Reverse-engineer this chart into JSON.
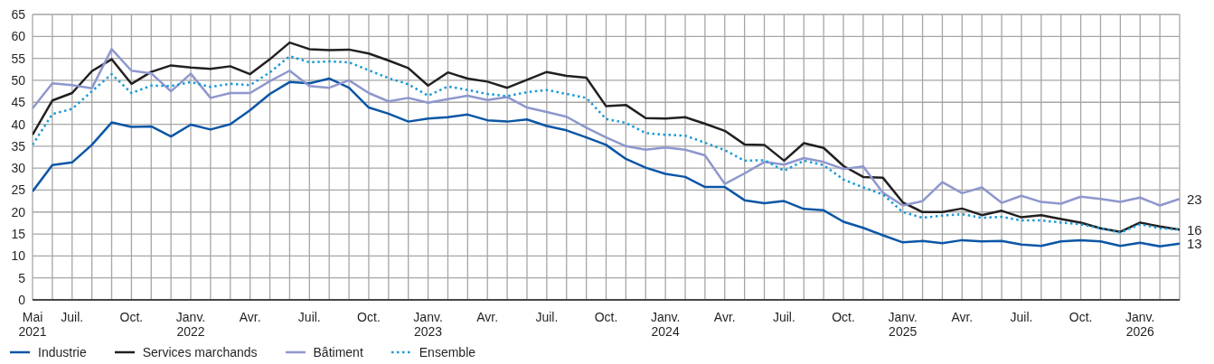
{
  "chart_data": {
    "type": "line",
    "x": [
      "2021-05",
      "2021-06",
      "2021-07",
      "2021-08",
      "2021-09",
      "2021-10",
      "2021-11",
      "2021-12",
      "2022-01",
      "2022-02",
      "2022-03",
      "2022-04",
      "2022-05",
      "2022-06",
      "2022-07",
      "2022-08",
      "2022-09",
      "2022-10",
      "2022-11",
      "2022-12",
      "2023-01",
      "2023-02",
      "2023-03",
      "2023-04",
      "2023-05",
      "2023-06",
      "2023-07",
      "2023-08",
      "2023-09",
      "2023-10",
      "2023-11",
      "2023-12",
      "2024-01",
      "2024-02",
      "2024-03",
      "2024-04",
      "2024-05",
      "2024-06",
      "2024-07",
      "2024-08",
      "2024-09",
      "2024-10",
      "2024-11",
      "2024-12",
      "2025-01",
      "2025-02",
      "2025-03",
      "2025-04",
      "2025-05",
      "2025-06",
      "2025-07",
      "2025-08",
      "2025-09",
      "2025-10",
      "2025-11",
      "2025-12",
      "2026-01",
      "2026-02",
      "2026-03"
    ],
    "series": [
      {
        "name": "Industrie",
        "color": "#0b56a6",
        "line_style": "solid",
        "values": [
          24.7,
          30.7,
          31.3,
          35.3,
          40.4,
          39.4,
          39.5,
          37.2,
          39.9,
          38.8,
          40.0,
          43.2,
          46.9,
          49.6,
          49.3,
          50.4,
          48.3,
          43.8,
          42.4,
          40.6,
          41.3,
          41.6,
          42.2,
          40.9,
          40.6,
          41.1,
          39.6,
          38.6,
          37.0,
          35.3,
          32.1,
          30.1,
          28.7,
          28.0,
          25.7,
          25.7,
          22.7,
          22.0,
          22.5,
          20.7,
          20.4,
          17.8,
          16.4,
          14.7,
          13.1,
          13.4,
          12.9,
          13.6,
          13.3,
          13.4,
          12.6,
          12.3,
          13.3,
          13.6,
          13.3,
          12.3,
          13.0,
          12.2,
          12.8
        ]
      },
      {
        "name": "Services marchands",
        "color": "#231f20",
        "line_style": "solid",
        "values": [
          37.6,
          45.4,
          47.1,
          52.1,
          54.8,
          49.2,
          51.9,
          53.4,
          52.9,
          52.6,
          53.2,
          51.4,
          54.8,
          58.6,
          57.1,
          56.9,
          57.0,
          56.1,
          54.5,
          52.8,
          48.8,
          51.8,
          50.4,
          49.7,
          48.3,
          50.1,
          51.9,
          51.0,
          50.6,
          44.1,
          44.4,
          41.4,
          41.3,
          41.6,
          40.1,
          38.5,
          35.4,
          35.3,
          31.7,
          35.7,
          34.6,
          30.5,
          28.0,
          27.8,
          22.2,
          20.0,
          20.0,
          20.8,
          19.3,
          20.3,
          18.8,
          19.3,
          18.4,
          17.6,
          16.3,
          15.5,
          17.6,
          16.7,
          16.0
        ]
      },
      {
        "name": "Bâtiment",
        "color": "#8e97cd",
        "line_style": "solid",
        "values": [
          43.6,
          49.3,
          48.9,
          48.2,
          57.1,
          52.2,
          51.6,
          47.5,
          51.5,
          46.0,
          47.1,
          47.1,
          49.8,
          52.2,
          48.7,
          48.3,
          50.0,
          47.1,
          45.2,
          46.0,
          44.9,
          45.7,
          46.5,
          45.5,
          46.2,
          43.8,
          42.8,
          41.7,
          39.2,
          37.0,
          35.0,
          34.2,
          34.7,
          34.2,
          32.9,
          26.4,
          28.8,
          31.4,
          30.8,
          32.3,
          31.4,
          29.8,
          30.4,
          24.4,
          21.5,
          22.5,
          26.8,
          24.3,
          25.6,
          22.1,
          23.7,
          22.3,
          21.9,
          23.5,
          23.0,
          22.3,
          23.3,
          21.5,
          23.0
        ]
      },
      {
        "name": "Ensemble",
        "color": "#1a9ad6",
        "line_style": "dotted",
        "values": [
          35.3,
          42.3,
          43.5,
          47.5,
          51.4,
          47.1,
          48.8,
          48.7,
          49.6,
          48.5,
          49.2,
          48.9,
          51.8,
          55.5,
          54.1,
          54.3,
          54.1,
          52.3,
          50.5,
          49.1,
          46.5,
          48.6,
          47.8,
          46.9,
          46.4,
          47.3,
          47.8,
          46.9,
          46.0,
          41.2,
          40.3,
          38.0,
          37.6,
          37.4,
          35.8,
          34.1,
          31.7,
          31.8,
          29.4,
          31.7,
          30.7,
          27.4,
          25.6,
          24.0,
          20.0,
          18.7,
          19.2,
          19.5,
          18.7,
          18.9,
          18.1,
          18.1,
          17.6,
          17.2,
          16.3,
          15.3,
          17.2,
          16.3,
          16.0
        ]
      }
    ],
    "annotations": [
      {
        "text": "23",
        "x": "2026-03",
        "y": 23.0
      },
      {
        "text": "16",
        "x": "2026-03",
        "y": 16.0
      },
      {
        "text": "13",
        "x": "2026-03",
        "y": 12.8
      }
    ],
    "xlim": [
      "2021-05",
      "2026-03"
    ],
    "xticks": [
      {
        "value": "2021-05",
        "label": "Mai\n2021"
      },
      {
        "value": "2021-06",
        "label": null
      },
      {
        "value": "2021-07",
        "label": "Juil."
      },
      {
        "value": "2021-08",
        "label": null
      },
      {
        "value": "2021-09",
        "label": null
      },
      {
        "value": "2021-10",
        "label": "Oct."
      },
      {
        "value": "2021-11",
        "label": null
      },
      {
        "value": "2021-12",
        "label": null
      },
      {
        "value": "2022-01",
        "label": "Janv.\n2022"
      },
      {
        "value": "2022-02",
        "label": null
      },
      {
        "value": "2022-03",
        "label": null
      },
      {
        "value": "2022-04",
        "label": "Avr."
      },
      {
        "value": "2022-05",
        "label": null
      },
      {
        "value": "2022-06",
        "label": null
      },
      {
        "value": "2022-07",
        "label": "Juil."
      },
      {
        "value": "2022-08",
        "label": null
      },
      {
        "value": "2022-09",
        "label": null
      },
      {
        "value": "2022-10",
        "label": "Oct."
      },
      {
        "value": "2022-11",
        "label": null
      },
      {
        "value": "2022-12",
        "label": null
      },
      {
        "value": "2023-01",
        "label": "Janv.\n2023"
      },
      {
        "value": "2023-02",
        "label": null
      },
      {
        "value": "2023-03",
        "label": null
      },
      {
        "value": "2023-04",
        "label": "Avr."
      },
      {
        "value": "2023-05",
        "label": null
      },
      {
        "value": "2023-06",
        "label": null
      },
      {
        "value": "2023-07",
        "label": "Juil."
      },
      {
        "value": "2023-08",
        "label": null
      },
      {
        "value": "2023-09",
        "label": null
      },
      {
        "value": "2023-10",
        "label": "Oct."
      },
      {
        "value": "2023-11",
        "label": null
      },
      {
        "value": "2023-12",
        "label": null
      },
      {
        "value": "2024-01",
        "label": "Janv.\n2024"
      },
      {
        "value": "2024-02",
        "label": null
      },
      {
        "value": "2024-03",
        "label": null
      },
      {
        "value": "2024-04",
        "label": "Avr."
      },
      {
        "value": "2024-05",
        "label": null
      },
      {
        "value": "2024-06",
        "label": null
      },
      {
        "value": "2024-07",
        "label": "Juil."
      },
      {
        "value": "2024-08",
        "label": null
      },
      {
        "value": "2024-09",
        "label": null
      },
      {
        "value": "2024-10",
        "label": "Oct."
      },
      {
        "value": "2024-11",
        "label": null
      },
      {
        "value": "2024-12",
        "label": null
      },
      {
        "value": "2025-01",
        "label": "Janv.\n2025"
      },
      {
        "value": "2025-02",
        "label": null
      },
      {
        "value": "2025-03",
        "label": null
      },
      {
        "value": "2025-04",
        "label": "Avr."
      },
      {
        "value": "2025-05",
        "label": null
      },
      {
        "value": "2025-06",
        "label": null
      },
      {
        "value": "2025-07",
        "label": "Juil."
      },
      {
        "value": "2025-08",
        "label": null
      },
      {
        "value": "2025-09",
        "label": null
      },
      {
        "value": "2025-10",
        "label": "Oct."
      },
      {
        "value": "2025-11",
        "label": null
      },
      {
        "value": "2025-12",
        "label": null
      },
      {
        "value": "2026-01",
        "label": "Janv.\n2026"
      },
      {
        "value": "2026-02",
        "label": null
      },
      {
        "value": "2026-03",
        "label": null
      }
    ],
    "ylim": [
      0,
      65
    ],
    "yticks": [
      0,
      5,
      10,
      15,
      20,
      25,
      30,
      35,
      40,
      45,
      50,
      55,
      60,
      65
    ],
    "grid": true,
    "legend": "bottom",
    "marker": "none"
  }
}
